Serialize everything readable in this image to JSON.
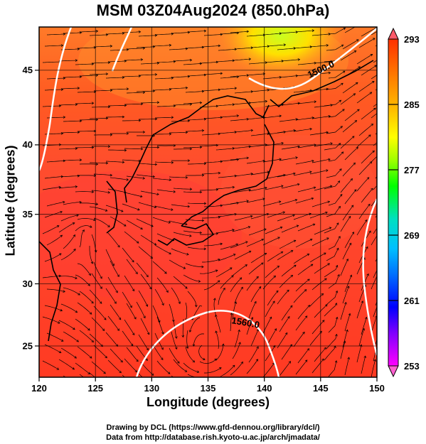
{
  "title": "MSM 03Z04Aug2024 (850.0hPa)",
  "axes": {
    "xlabel": "Longitude (degrees)",
    "ylabel": "Latitude  (degrees)",
    "xticks": [
      120,
      125,
      130,
      135,
      140,
      145,
      150
    ],
    "yticks": [
      25,
      30,
      35,
      40,
      45
    ],
    "xlim": [
      120,
      150
    ],
    "ylim": [
      22.4,
      47.6
    ]
  },
  "colorbar": {
    "ticks": [
      "293",
      "285",
      "277",
      "269",
      "261",
      "253"
    ],
    "range": [
      253,
      293
    ],
    "colors": [
      "#ff00ff",
      "#8000ff",
      "#0000ff",
      "#0070ff",
      "#00c0ff",
      "#00e0c0",
      "#00ff00",
      "#a0ff00",
      "#ffff00",
      "#ffc000",
      "#ff8000",
      "#ff3000"
    ]
  },
  "contour_labels": [
    "1500.0",
    "1560.0"
  ],
  "credits": {
    "line1": "Drawing by DCL (https://www.gfd-dennou.org/library/dcl/)",
    "line2": "Data from http://database.rish.kyoto-u.ac.jp/arch/jmadata/"
  }
}
